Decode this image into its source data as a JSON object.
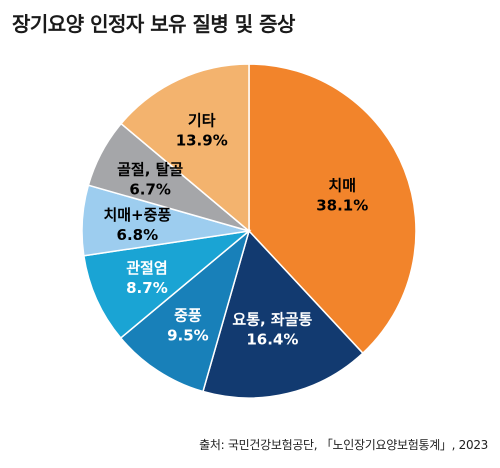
{
  "chart_data": {
    "type": "pie",
    "title": "장기요양 인정자 보유 질병 및 증상",
    "start_angle_deg": 0,
    "direction": "clockwise",
    "slices": [
      {
        "label": "치매",
        "value": 38.1,
        "display": "38.1%",
        "color": "#F2842B",
        "label_color": "#000000"
      },
      {
        "label": "요통, 좌골통",
        "value": 16.4,
        "display": "16.4%",
        "color": "#123A70",
        "label_color": "#ffffff"
      },
      {
        "label": "중풍",
        "value": 9.5,
        "display": "9.5%",
        "color": "#1880B9",
        "label_color": "#ffffff"
      },
      {
        "label": "관절염",
        "value": 8.7,
        "display": "8.7%",
        "color": "#1AA4D4",
        "label_color": "#ffffff"
      },
      {
        "label": "치매+중풍",
        "value": 6.8,
        "display": "6.8%",
        "color": "#9DCDEF",
        "label_color": "#000000"
      },
      {
        "label": "골절, 탈골",
        "value": 6.7,
        "display": "6.7%",
        "color": "#A5A6A9",
        "label_color": "#000000"
      },
      {
        "label": "기타",
        "value": 13.9,
        "display": "13.9%",
        "color": "#F3B36E",
        "label_color": "#000000"
      }
    ],
    "source": "출처: 국민건강보험공단, 「노인장기요양보험통계」, 2023"
  }
}
